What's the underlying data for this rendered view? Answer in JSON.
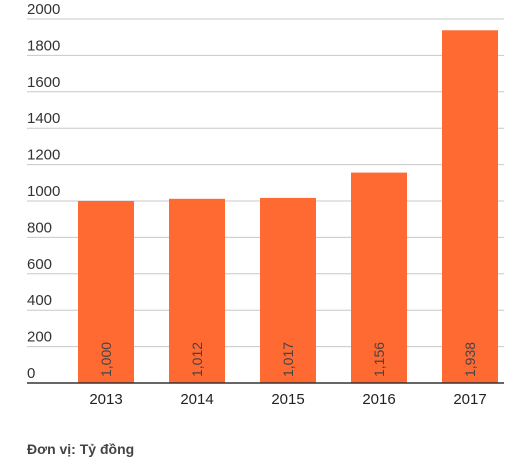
{
  "chart_data": {
    "type": "bar",
    "categories": [
      "2013",
      "2014",
      "2015",
      "2016",
      "2017"
    ],
    "values": [
      1000,
      1012,
      1017,
      1156,
      1938
    ],
    "data_labels": [
      "1,000",
      "1,012",
      "1,017",
      "1,156",
      "1,938"
    ],
    "yticks": [
      "0",
      "200",
      "400",
      "600",
      "800",
      "1000",
      "1200",
      "1400",
      "1600",
      "1800",
      "2000"
    ],
    "ylim": [
      0,
      2000
    ],
    "grid": true,
    "bar_color": "#ff6a33",
    "gridline_color": "#c8c8c8",
    "axis_color": "#333333"
  },
  "footer": {
    "unit_note": "Đơn vị: Tỷ đồng"
  }
}
